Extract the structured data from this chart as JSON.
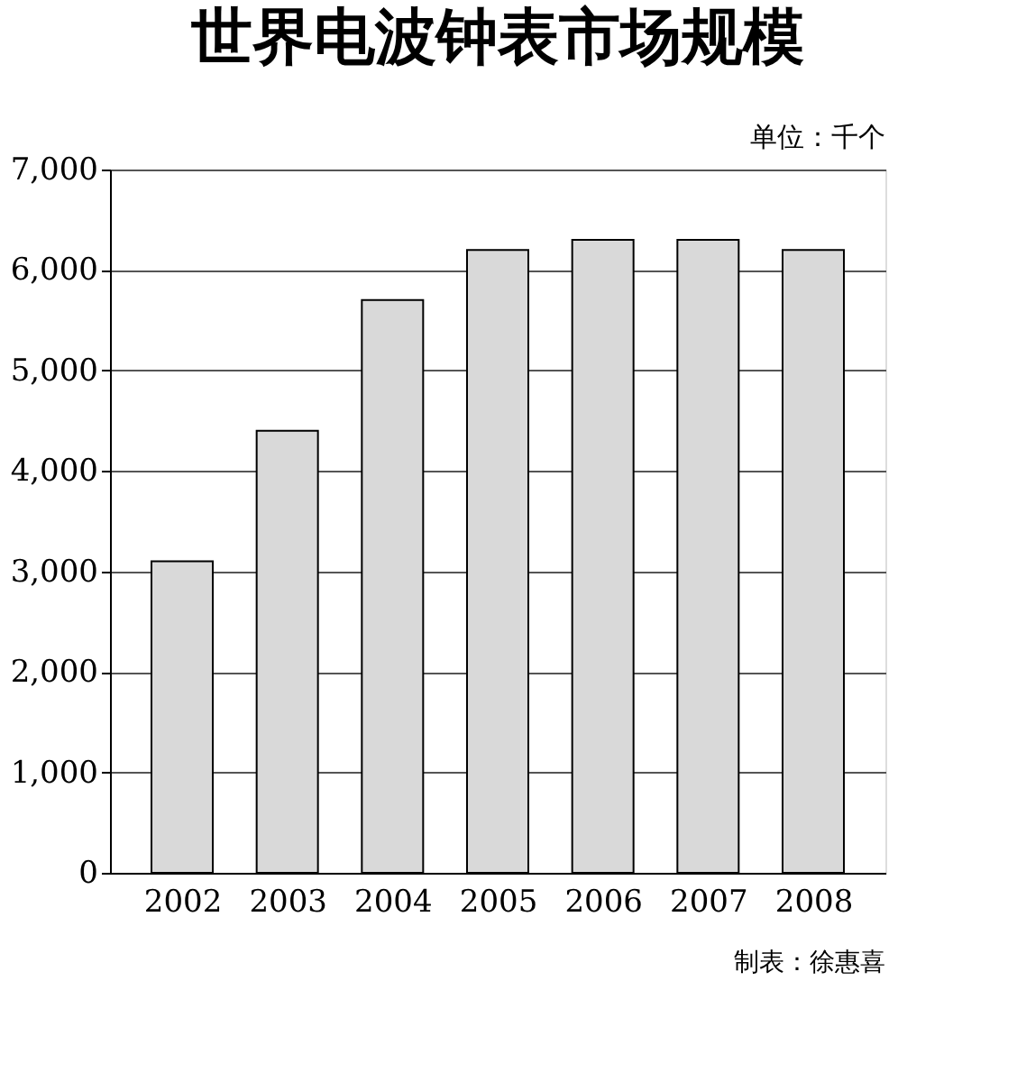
{
  "chart_data": {
    "type": "bar",
    "title": "世界电波钟表市场规模",
    "categories": [
      "2002",
      "2003",
      "2004",
      "2005",
      "2006",
      "2007",
      "2008"
    ],
    "values": [
      3100,
      4400,
      5700,
      6200,
      6300,
      6300,
      6200
    ],
    "color": "#d9d9d9",
    "ylim": [
      0,
      7000
    ],
    "yticks": [
      0,
      {
        "value": 1000,
        "label": "1,000"
      },
      {
        "value": 2000,
        "label": "2,000"
      },
      {
        "value": 3000,
        "label": "3,000"
      },
      {
        "value": 4000,
        "label": "4,000"
      },
      {
        "value": 5000,
        "label": "5,000"
      },
      {
        "value": 6000,
        "label": "6,000"
      },
      {
        "value": 7000,
        "label": "7,000"
      }
    ],
    "grid": "y",
    "annotations": [
      "单位：千个",
      "制表：徐惠喜"
    ]
  }
}
